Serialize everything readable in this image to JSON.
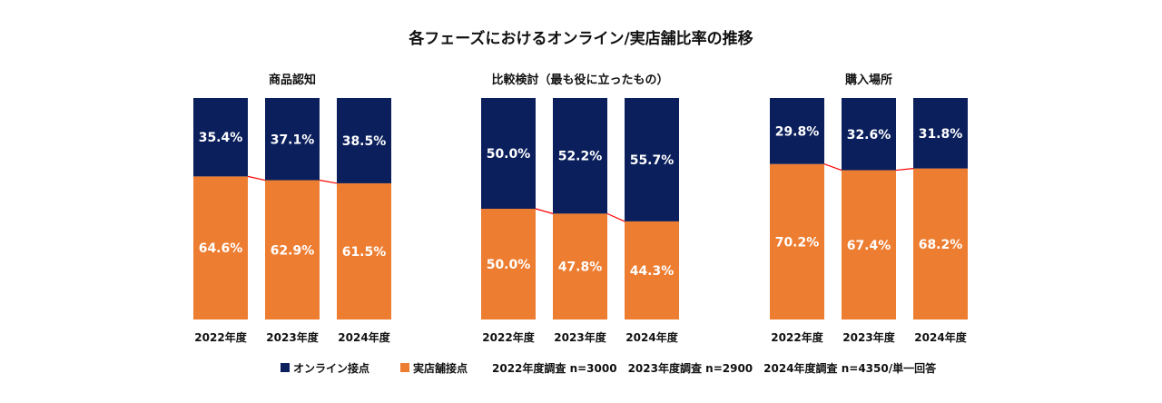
{
  "title": "各フェーズにおけるオンライン/実店舗比率の推移",
  "colors": {
    "online": "#0b1f5c",
    "store": "#ed7d31",
    "connector": "#ff0000"
  },
  "legend": {
    "online_label": "オンライン接点",
    "store_label": "実店舗接点",
    "note": "2022年度調査 n=3000　2023年度調査 n=2900　2024年度調査 n=4350/単一回答"
  },
  "chart_data": [
    {
      "type": "bar",
      "stacked": true,
      "title": "商品認知",
      "categories": [
        "2022年度",
        "2023年度",
        "2024年度"
      ],
      "ylim": [
        0,
        100
      ],
      "series": [
        {
          "name": "実店舗接点",
          "values": [
            64.6,
            62.9,
            61.5
          ],
          "labels": [
            "64.6%",
            "62.9%",
            "61.5%"
          ]
        },
        {
          "name": "オンライン接点",
          "values": [
            35.4,
            37.1,
            38.5
          ],
          "labels": [
            "35.4%",
            "37.1%",
            "38.5%"
          ]
        }
      ]
    },
    {
      "type": "bar",
      "stacked": true,
      "title": "比較検討（最も役に立ったもの）",
      "categories": [
        "2022年度",
        "2023年度",
        "2024年度"
      ],
      "ylim": [
        0,
        100
      ],
      "series": [
        {
          "name": "実店舗接点",
          "values": [
            50.0,
            47.8,
            44.3
          ],
          "labels": [
            "50.0%",
            "47.8%",
            "44.3%"
          ]
        },
        {
          "name": "オンライン接点",
          "values": [
            50.0,
            52.2,
            55.7
          ],
          "labels": [
            "50.0%",
            "52.2%",
            "55.7%"
          ]
        }
      ]
    },
    {
      "type": "bar",
      "stacked": true,
      "title": "購入場所",
      "categories": [
        "2022年度",
        "2023年度",
        "2024年度"
      ],
      "ylim": [
        0,
        100
      ],
      "series": [
        {
          "name": "実店舗接点",
          "values": [
            70.2,
            67.4,
            68.2
          ],
          "labels": [
            "70.2%",
            "67.4%",
            "68.2%"
          ]
        },
        {
          "name": "オンライン接点",
          "values": [
            29.8,
            32.6,
            31.8
          ],
          "labels": [
            "29.8%",
            "32.6%",
            "31.8%"
          ]
        }
      ]
    }
  ]
}
